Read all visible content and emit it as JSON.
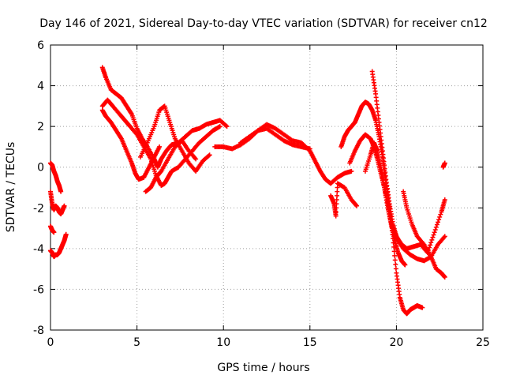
{
  "chart_data": {
    "type": "scatter",
    "title": "Day 146 of 2021, Sidereal Day-to-day VTEC variation (SDTVAR) for receiver cn12",
    "xlabel": "GPS time / hours",
    "ylabel": "SDTVAR / TECUs",
    "xlim": [
      0,
      25
    ],
    "ylim": [
      -8,
      6
    ],
    "x_ticks": [
      "0",
      "5",
      "10",
      "15",
      "20",
      "25"
    ],
    "y_ticks": [
      "-8",
      "-6",
      "-4",
      "-2",
      "0",
      "2",
      "4",
      "6"
    ],
    "grid": true,
    "marker": "+",
    "color": "#ff0000",
    "series": [
      {
        "x": [
          0.0,
          0.1,
          0.2,
          0.3,
          0.4,
          0.5,
          0.6
        ],
        "y": [
          0.2,
          0.1,
          -0.2,
          -0.4,
          -0.7,
          -0.9,
          -1.2
        ]
      },
      {
        "x": [
          0.0,
          0.1,
          0.2,
          0.3,
          0.4,
          0.5,
          0.6,
          0.7,
          0.8
        ],
        "y": [
          -1.2,
          -1.8,
          -2.1,
          -1.9,
          -2.0,
          -2.2,
          -2.3,
          -2.1,
          -1.9
        ]
      },
      {
        "x": [
          0.0,
          0.1,
          0.2,
          0.3,
          0.4,
          0.5,
          0.6,
          0.7,
          0.8,
          0.9
        ],
        "y": [
          -4.1,
          -4.2,
          -4.4,
          -4.3,
          -4.3,
          -4.2,
          -4.0,
          -3.8,
          -3.6,
          -3.3
        ]
      },
      {
        "x": [
          0.0,
          0.1,
          0.2
        ],
        "y": [
          -2.9,
          -3.1,
          -3.2
        ]
      },
      {
        "x": [
          3.0,
          3.2,
          3.5,
          3.8,
          4.1,
          4.4,
          4.7,
          5.0,
          5.3,
          5.6,
          6.0,
          6.2,
          6.4,
          6.7,
          7.0,
          7.4,
          7.8,
          8.2,
          8.6,
          9.0,
          9.4,
          9.8,
          10.2
        ],
        "y": [
          4.9,
          4.4,
          3.8,
          3.6,
          3.4,
          3.0,
          2.6,
          1.9,
          1.4,
          1.0,
          0.4,
          0.0,
          0.4,
          0.8,
          1.1,
          1.2,
          1.5,
          1.8,
          1.9,
          2.1,
          2.2,
          2.3,
          2.0
        ]
      },
      {
        "x": [
          3.0,
          3.3,
          3.6,
          4.0,
          4.3,
          4.6,
          5.0,
          5.4,
          5.8,
          6.1,
          6.4,
          6.6,
          6.8,
          7.0,
          7.4,
          7.8,
          8.2,
          8.6,
          9.0,
          9.4,
          9.8
        ],
        "y": [
          3.0,
          3.3,
          3.0,
          2.6,
          2.3,
          2.0,
          1.6,
          1.0,
          0.4,
          -0.4,
          -0.9,
          -0.8,
          -0.5,
          -0.2,
          0.0,
          0.4,
          0.8,
          1.2,
          1.5,
          1.8,
          2.0
        ]
      },
      {
        "x": [
          3.0,
          3.2,
          3.5,
          3.8,
          4.1,
          4.4,
          4.7,
          4.9,
          5.1,
          5.4,
          5.7,
          6.0,
          6.3
        ],
        "y": [
          2.8,
          2.5,
          2.2,
          1.8,
          1.4,
          0.8,
          0.2,
          -0.3,
          -0.6,
          -0.5,
          0.0,
          0.5,
          1.0
        ]
      },
      {
        "x": [
          5.2,
          5.6,
          6.0,
          6.3,
          6.6,
          6.9,
          7.2,
          7.6,
          8.0,
          8.4,
          8.8,
          9.2
        ],
        "y": [
          0.5,
          1.2,
          2.0,
          2.8,
          3.0,
          2.2,
          1.4,
          0.8,
          0.2,
          -0.2,
          0.3,
          0.6
        ]
      },
      {
        "x": [
          5.5,
          5.8,
          6.1,
          6.4,
          6.8,
          7.2,
          7.6,
          8.0,
          8.4
        ],
        "y": [
          -1.2,
          -1.0,
          -0.5,
          -0.2,
          0.4,
          1.0,
          1.3,
          0.8,
          0.4
        ]
      },
      {
        "x": [
          9.5,
          10.0,
          10.5,
          11.0,
          11.5,
          12.0,
          12.5,
          13.0,
          13.5,
          14.0,
          14.5,
          15.0,
          15.3,
          15.6,
          15.9,
          16.2,
          16.6,
          17.0,
          17.4
        ],
        "y": [
          1.0,
          1.0,
          0.9,
          1.1,
          1.4,
          1.8,
          2.1,
          1.9,
          1.6,
          1.3,
          1.2,
          0.8,
          0.3,
          -0.2,
          -0.6,
          -0.8,
          -0.5,
          -0.3,
          -0.2
        ]
      },
      {
        "x": [
          11.0,
          11.5,
          12.0,
          12.5,
          13.0,
          13.5,
          14.0,
          14.5,
          15.0
        ],
        "y": [
          1.2,
          1.5,
          1.8,
          1.9,
          1.6,
          1.3,
          1.1,
          1.0,
          0.9
        ]
      },
      {
        "x": [
          16.2,
          16.4,
          16.5,
          16.6,
          17.0,
          17.4,
          17.7
        ],
        "y": [
          -1.4,
          -1.8,
          -2.4,
          -0.8,
          -1.0,
          -1.6,
          -1.9
        ]
      },
      {
        "x": [
          16.8,
          17.0,
          17.2,
          17.4,
          17.6,
          17.8,
          18.0,
          18.2,
          18.4,
          18.6,
          18.8,
          19.0,
          19.2,
          19.4,
          19.6,
          19.8,
          20.0,
          20.2,
          20.4,
          20.6,
          20.8,
          21.0,
          21.2,
          21.5
        ],
        "y": [
          1.0,
          1.5,
          1.8,
          2.0,
          2.2,
          2.6,
          3.0,
          3.2,
          3.1,
          2.8,
          2.3,
          1.5,
          0.5,
          -0.8,
          -2.0,
          -3.5,
          -5.2,
          -6.4,
          -7.0,
          -7.2,
          -7.0,
          -6.9,
          -6.8,
          -6.9
        ]
      },
      {
        "x": [
          17.3,
          17.6,
          17.9,
          18.2,
          18.5,
          18.7,
          18.9,
          19.1,
          19.3,
          19.5,
          19.7,
          19.9,
          20.1,
          20.3,
          20.5
        ],
        "y": [
          0.2,
          0.8,
          1.3,
          1.6,
          1.4,
          1.0,
          0.4,
          -0.3,
          -1.0,
          -1.8,
          -2.8,
          -3.6,
          -4.2,
          -4.6,
          -4.8
        ]
      },
      {
        "x": [
          18.2,
          18.5,
          18.7,
          18.9,
          19.1,
          19.3,
          19.5,
          19.7,
          19.9,
          20.1,
          20.4,
          20.8,
          21.2,
          21.6,
          22.0,
          22.4,
          22.8
        ],
        "y": [
          -0.2,
          0.6,
          1.2,
          0.8,
          0.0,
          -1.0,
          -2.0,
          -2.8,
          -3.2,
          -3.6,
          -4.0,
          -4.3,
          -4.5,
          -4.6,
          -4.4,
          -3.8,
          -3.4
        ]
      },
      {
        "x": [
          18.6,
          18.8,
          19.0,
          19.2,
          19.4,
          19.6,
          19.8,
          20.0,
          20.3,
          20.6,
          21.0,
          21.4,
          21.8,
          22.2,
          22.6,
          22.8
        ],
        "y": [
          4.7,
          3.6,
          2.2,
          0.8,
          -0.6,
          -1.8,
          -2.8,
          -3.4,
          -3.8,
          -4.0,
          -3.9,
          -3.8,
          -4.2,
          -3.2,
          -2.2,
          -1.6
        ]
      },
      {
        "x": [
          20.4,
          20.6,
          20.9,
          21.2,
          21.6,
          22.0,
          22.3,
          22.6,
          22.8
        ],
        "y": [
          -1.2,
          -2.0,
          -2.8,
          -3.4,
          -3.8,
          -4.4,
          -5.0,
          -5.2,
          -5.4
        ]
      },
      {
        "x": [
          22.7,
          22.8
        ],
        "y": [
          0.0,
          0.2
        ]
      }
    ]
  }
}
